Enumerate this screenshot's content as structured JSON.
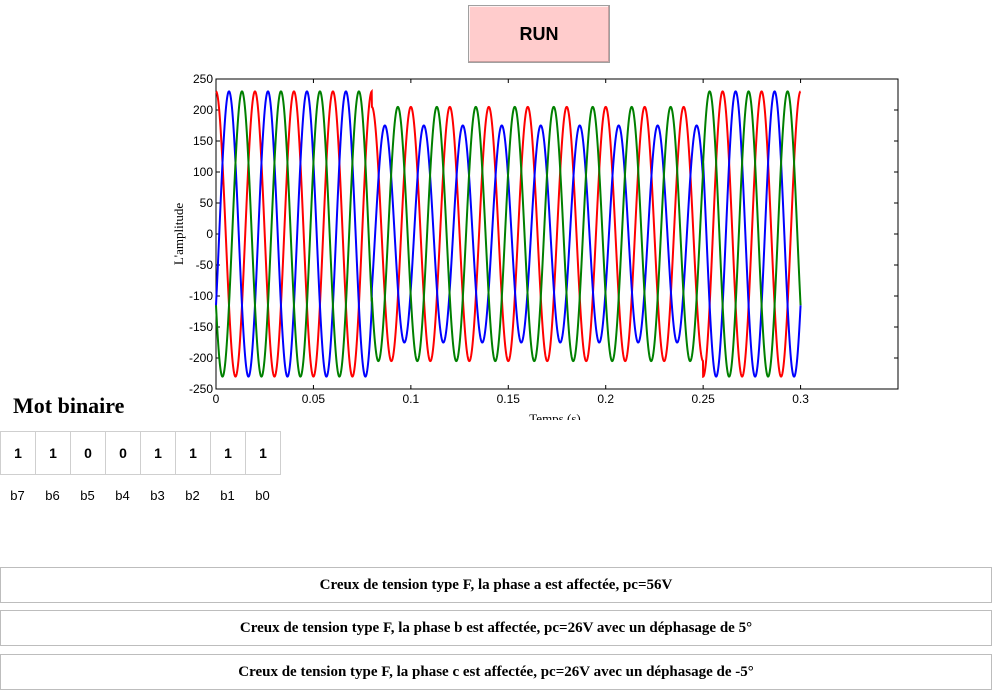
{
  "run_button": {
    "label": "RUN"
  },
  "chart_data": {
    "type": "line",
    "xlabel": "Temps (s)",
    "ylabel": "L'amplitude",
    "xlim": [
      0,
      0.35
    ],
    "ylim": [
      -250,
      250
    ],
    "xticks": [
      "0",
      "0.05",
      "0.1",
      "0.15",
      "0.2",
      "0.25",
      "0.3"
    ],
    "yticks": [
      "250",
      "200",
      "150",
      "100",
      "50",
      "0",
      "-50",
      "-100",
      "-150",
      "-200",
      "-250"
    ],
    "frequency_hz": 50,
    "t_end": 0.3,
    "sag_interval": [
      0.08,
      0.25
    ],
    "series": [
      {
        "color": "#ff0000",
        "phase_deg": 90,
        "amplitude_normal": 230,
        "amplitude_sag": 205
      },
      {
        "color": "#0000ff",
        "phase_deg": -30,
        "amplitude_normal": 230,
        "amplitude_sag": 175
      },
      {
        "color": "#008000",
        "phase_deg": 210,
        "amplitude_normal": 230,
        "amplitude_sag": 205
      }
    ]
  },
  "binary_word": {
    "title": "Mot binaire",
    "bits": [
      "1",
      "1",
      "0",
      "0",
      "1",
      "1",
      "1",
      "1"
    ],
    "bit_names": [
      "b7",
      "b6",
      "b5",
      "b4",
      "b3",
      "b2",
      "b1",
      "b0"
    ]
  },
  "messages": [
    "Creux de tension type F, la phase a est affectée, pc=56V",
    "Creux de tension type F, la phase b est affectée, pc=26V avec un déphasage de 5°",
    "Creux de tension type F, la phase c est affectée, pc=26V avec un déphasage de -5°"
  ]
}
